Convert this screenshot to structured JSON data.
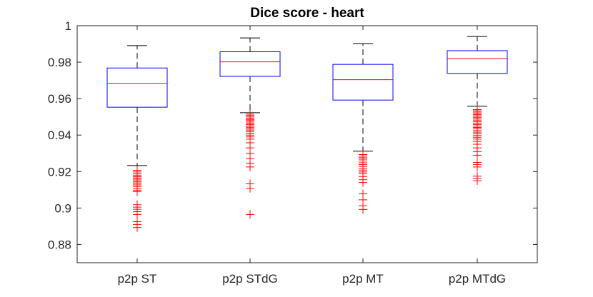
{
  "chart_data": {
    "type": "box",
    "title": "Dice score - heart",
    "xlabel": "",
    "ylabel": "",
    "ylim": [
      0.87,
      1.0
    ],
    "yticks": [
      {
        "value": 0.88,
        "label": "0.88"
      },
      {
        "value": 0.9,
        "label": "0.9"
      },
      {
        "value": 0.92,
        "label": "0.92"
      },
      {
        "value": 0.94,
        "label": "0.94"
      },
      {
        "value": 0.96,
        "label": "0.96"
      },
      {
        "value": 0.98,
        "label": "0.98"
      },
      {
        "value": 1.0,
        "label": "1"
      }
    ],
    "grid": false,
    "colors": {
      "box": "#0000ff",
      "median": "#ff0000",
      "whisker": "#000000",
      "outlier": "#ff0000",
      "axis": "#262626"
    },
    "categories": [
      "p2p ST",
      "p2p STdG",
      "p2p MT",
      "p2p MTdG"
    ],
    "boxes": [
      {
        "name": "p2p ST",
        "whisker_low": 0.9233,
        "q1": 0.9553,
        "median": 0.9684,
        "q3": 0.9768,
        "whisker_high": 0.9891,
        "outliers": [
          0.9207,
          0.9198,
          0.9188,
          0.918,
          0.9172,
          0.9165,
          0.9158,
          0.915,
          0.9143,
          0.9135,
          0.9127,
          0.9118,
          0.9108,
          0.9098,
          0.909,
          0.9018,
          0.9005,
          0.8993,
          0.898,
          0.8965,
          0.8925,
          0.891,
          0.8893
        ]
      },
      {
        "name": "p2p STdG",
        "whisker_low": 0.9523,
        "q1": 0.9722,
        "median": 0.9802,
        "q3": 0.9857,
        "whisker_high": 0.9933,
        "outliers": [
          0.9515,
          0.9508,
          0.95,
          0.9493,
          0.9486,
          0.948,
          0.9472,
          0.9465,
          0.9458,
          0.945,
          0.9443,
          0.9436,
          0.9428,
          0.942,
          0.941,
          0.94,
          0.939,
          0.9378,
          0.9358,
          0.933,
          0.93,
          0.927,
          0.9245,
          0.9225,
          0.9133,
          0.9108,
          0.8965
        ]
      },
      {
        "name": "p2p MT",
        "whisker_low": 0.9312,
        "q1": 0.9592,
        "median": 0.9704,
        "q3": 0.9788,
        "whisker_high": 0.9902,
        "outliers": [
          0.9293,
          0.9285,
          0.9276,
          0.9268,
          0.9258,
          0.9248,
          0.9238,
          0.9228,
          0.9218,
          0.9208,
          0.9198,
          0.9188,
          0.9173,
          0.9155,
          0.914,
          0.9078,
          0.9045,
          0.9013,
          0.8992
        ]
      },
      {
        "name": "p2p MTdG",
        "whisker_low": 0.9558,
        "q1": 0.9738,
        "median": 0.982,
        "q3": 0.9863,
        "whisker_high": 0.9941,
        "outliers": [
          0.954,
          0.9533,
          0.9526,
          0.9519,
          0.9512,
          0.9505,
          0.9498,
          0.949,
          0.9482,
          0.9474,
          0.9466,
          0.9458,
          0.945,
          0.9442,
          0.9434,
          0.9425,
          0.9416,
          0.9407,
          0.9398,
          0.9388,
          0.9378,
          0.9365,
          0.935,
          0.933,
          0.931,
          0.929,
          0.925,
          0.9238,
          0.9225,
          0.9175,
          0.9162,
          0.915
        ]
      }
    ]
  }
}
